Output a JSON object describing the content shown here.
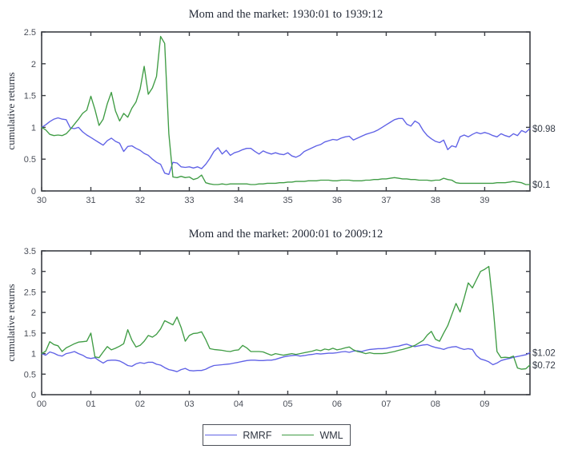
{
  "figure": {
    "background": "#ffffff",
    "axis_color": "#3b3e44",
    "legend": {
      "items": [
        {
          "label": "RMRF",
          "color": "#5f61e6"
        },
        {
          "label": "WML",
          "color": "#3f9c44"
        }
      ]
    }
  },
  "chart_data": [
    {
      "type": "line",
      "title": "Mom and the market: 1930:01 to 1939:12",
      "xlabel": "",
      "ylabel": "cumulative returns",
      "xlim": [
        30,
        39.92
      ],
      "ylim": [
        0,
        2.5
      ],
      "grid": false,
      "legend_position": "south-outside",
      "xticks": [
        30,
        31,
        32,
        33,
        34,
        35,
        36,
        37,
        38,
        39
      ],
      "xtick_labels": [
        "30",
        "31",
        "32",
        "33",
        "34",
        "35",
        "36",
        "37",
        "38",
        "39"
      ],
      "yticks": [
        0,
        0.5,
        1,
        1.5,
        2,
        2.5
      ],
      "ytick_labels": [
        "0",
        "0.5",
        "1",
        "1.5",
        "2",
        "2.5"
      ],
      "x_frequency": "monthly",
      "series": [
        {
          "name": "RMRF",
          "color": "#5f61e6",
          "end_label": "$0.98",
          "values": [
            1.0,
            1.04,
            1.09,
            1.13,
            1.15,
            1.13,
            1.12,
            0.99,
            0.98,
            1.0,
            0.93,
            0.88,
            0.84,
            0.8,
            0.76,
            0.72,
            0.79,
            0.83,
            0.78,
            0.75,
            0.62,
            0.7,
            0.71,
            0.67,
            0.64,
            0.59,
            0.56,
            0.5,
            0.45,
            0.42,
            0.28,
            0.26,
            0.45,
            0.44,
            0.38,
            0.37,
            0.38,
            0.36,
            0.38,
            0.35,
            0.42,
            0.51,
            0.62,
            0.68,
            0.58,
            0.64,
            0.56,
            0.6,
            0.62,
            0.65,
            0.67,
            0.67,
            0.62,
            0.58,
            0.63,
            0.6,
            0.58,
            0.6,
            0.58,
            0.57,
            0.6,
            0.55,
            0.53,
            0.56,
            0.62,
            0.65,
            0.68,
            0.71,
            0.73,
            0.77,
            0.79,
            0.81,
            0.8,
            0.83,
            0.85,
            0.86,
            0.8,
            0.83,
            0.86,
            0.89,
            0.91,
            0.93,
            0.96,
            1.0,
            1.04,
            1.08,
            1.12,
            1.14,
            1.14,
            1.05,
            1.02,
            1.1,
            1.06,
            0.95,
            0.87,
            0.82,
            0.78,
            0.76,
            0.8,
            0.65,
            0.71,
            0.69,
            0.85,
            0.88,
            0.85,
            0.89,
            0.92,
            0.9,
            0.92,
            0.9,
            0.87,
            0.85,
            0.9,
            0.87,
            0.85,
            0.9,
            0.87,
            0.95,
            0.92,
            0.98
          ]
        },
        {
          "name": "WML",
          "color": "#3f9c44",
          "end_label": "$0.1",
          "values": [
            1.0,
            0.96,
            0.89,
            0.87,
            0.88,
            0.87,
            0.9,
            0.97,
            1.05,
            1.13,
            1.22,
            1.27,
            1.49,
            1.28,
            1.03,
            1.13,
            1.37,
            1.55,
            1.26,
            1.1,
            1.22,
            1.16,
            1.3,
            1.4,
            1.6,
            1.96,
            1.52,
            1.62,
            1.8,
            2.43,
            2.32,
            0.9,
            0.22,
            0.21,
            0.23,
            0.21,
            0.22,
            0.18,
            0.2,
            0.25,
            0.13,
            0.11,
            0.1,
            0.1,
            0.11,
            0.1,
            0.11,
            0.11,
            0.11,
            0.11,
            0.11,
            0.1,
            0.1,
            0.11,
            0.11,
            0.12,
            0.12,
            0.12,
            0.13,
            0.13,
            0.14,
            0.14,
            0.15,
            0.15,
            0.15,
            0.16,
            0.16,
            0.16,
            0.17,
            0.17,
            0.17,
            0.16,
            0.16,
            0.17,
            0.17,
            0.17,
            0.16,
            0.16,
            0.16,
            0.17,
            0.17,
            0.18,
            0.18,
            0.19,
            0.19,
            0.2,
            0.21,
            0.2,
            0.19,
            0.19,
            0.18,
            0.18,
            0.17,
            0.17,
            0.17,
            0.16,
            0.17,
            0.17,
            0.2,
            0.18,
            0.17,
            0.13,
            0.12,
            0.12,
            0.12,
            0.12,
            0.12,
            0.12,
            0.12,
            0.12,
            0.12,
            0.13,
            0.13,
            0.13,
            0.14,
            0.15,
            0.14,
            0.13,
            0.1,
            0.1
          ]
        }
      ]
    },
    {
      "type": "line",
      "title": "Mom and the market: 2000:01 to 2009:12",
      "xlabel": "",
      "ylabel": "cumulative returns",
      "xlim": [
        0,
        9.92
      ],
      "ylim": [
        0,
        3.5
      ],
      "grid": false,
      "legend_position": "south-outside",
      "xticks": [
        0,
        1,
        2,
        3,
        4,
        5,
        6,
        7,
        8,
        9
      ],
      "xtick_labels": [
        "00",
        "01",
        "02",
        "03",
        "04",
        "05",
        "06",
        "07",
        "08",
        "09"
      ],
      "yticks": [
        0,
        0.5,
        1,
        1.5,
        2,
        2.5,
        3,
        3.5
      ],
      "ytick_labels": [
        "0",
        "0.5",
        "1",
        "1.5",
        "2",
        "2.5",
        "3",
        "3.5"
      ],
      "x_frequency": "monthly",
      "series": [
        {
          "name": "RMRF",
          "color": "#5f61e6",
          "end_label": "$1.02",
          "values": [
            1.0,
            0.96,
            1.04,
            1.01,
            0.96,
            0.94,
            1.0,
            1.02,
            1.05,
            1.0,
            0.96,
            0.9,
            0.88,
            0.9,
            0.83,
            0.77,
            0.83,
            0.84,
            0.84,
            0.82,
            0.77,
            0.71,
            0.69,
            0.75,
            0.78,
            0.76,
            0.79,
            0.79,
            0.74,
            0.72,
            0.66,
            0.61,
            0.59,
            0.56,
            0.61,
            0.64,
            0.59,
            0.58,
            0.59,
            0.59,
            0.62,
            0.67,
            0.71,
            0.72,
            0.73,
            0.74,
            0.75,
            0.77,
            0.79,
            0.81,
            0.83,
            0.84,
            0.84,
            0.83,
            0.83,
            0.84,
            0.84,
            0.86,
            0.89,
            0.92,
            0.94,
            0.95,
            0.96,
            0.94,
            0.95,
            0.97,
            0.98,
            1.0,
            0.99,
            1.0,
            1.01,
            1.01,
            1.02,
            1.04,
            1.05,
            1.03,
            1.06,
            1.07,
            1.05,
            1.08,
            1.1,
            1.11,
            1.12,
            1.12,
            1.13,
            1.15,
            1.17,
            1.18,
            1.21,
            1.23,
            1.19,
            1.17,
            1.19,
            1.21,
            1.22,
            1.18,
            1.15,
            1.13,
            1.1,
            1.14,
            1.16,
            1.17,
            1.13,
            1.1,
            1.12,
            1.1,
            0.95,
            0.87,
            0.84,
            0.8,
            0.73,
            0.77,
            0.83,
            0.86,
            0.88,
            0.91,
            0.93,
            0.95,
            0.97,
            1.02
          ]
        },
        {
          "name": "WML",
          "color": "#3f9c44",
          "end_label": "$0.72",
          "values": [
            1.0,
            1.06,
            1.29,
            1.22,
            1.19,
            1.05,
            1.14,
            1.19,
            1.24,
            1.28,
            1.29,
            1.3,
            1.5,
            0.92,
            0.9,
            1.04,
            1.17,
            1.09,
            1.13,
            1.18,
            1.24,
            1.58,
            1.33,
            1.16,
            1.2,
            1.3,
            1.44,
            1.4,
            1.47,
            1.6,
            1.8,
            1.75,
            1.7,
            1.89,
            1.64,
            1.3,
            1.44,
            1.49,
            1.5,
            1.53,
            1.34,
            1.12,
            1.1,
            1.09,
            1.08,
            1.06,
            1.05,
            1.08,
            1.09,
            1.2,
            1.14,
            1.05,
            1.05,
            1.05,
            1.04,
            1.0,
            0.96,
            1.0,
            0.98,
            0.96,
            0.98,
            1.0,
            0.98,
            1.0,
            1.02,
            1.04,
            1.06,
            1.09,
            1.07,
            1.11,
            1.09,
            1.13,
            1.09,
            1.11,
            1.14,
            1.16,
            1.09,
            1.05,
            1.03,
            1.0,
            1.02,
            1.0,
            1.0,
            1.0,
            1.01,
            1.03,
            1.05,
            1.08,
            1.1,
            1.13,
            1.16,
            1.2,
            1.26,
            1.32,
            1.45,
            1.54,
            1.35,
            1.3,
            1.5,
            1.68,
            1.95,
            2.22,
            2.01,
            2.35,
            2.72,
            2.6,
            2.8,
            3.0,
            3.05,
            3.12,
            2.2,
            1.05,
            0.9,
            0.91,
            0.9,
            0.94,
            0.65,
            0.62,
            0.63,
            0.72
          ]
        }
      ]
    }
  ]
}
